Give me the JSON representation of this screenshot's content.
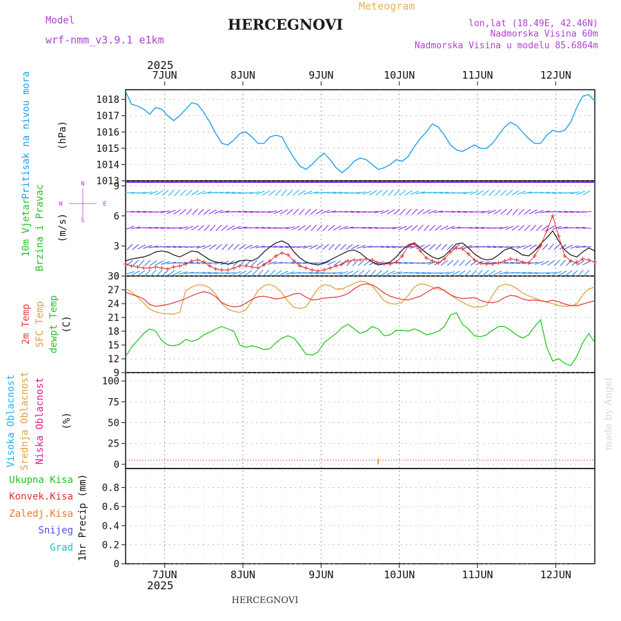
{
  "header": {
    "model_label": "Model",
    "model_name": "wrf-nmm_v3.9.1 e1km",
    "city": "HERCEGNOVI",
    "product": "Meteogram",
    "lonlat": "lon,lat (18.49E, 42.46N)",
    "elevation": "Nadmorska Visina 60m",
    "model_elevation": "Nadmorska Visina u modelu 85.6864m",
    "footer_city": "HERCEGNOVI",
    "watermark": "made by Angel"
  },
  "colors": {
    "pressure": "#1ea0e6",
    "wind_label": "#22c022",
    "wind_arrow_low": "#1e90ff",
    "wind_arrow_high": "#8a2be2",
    "wind_gust": "#e03030",
    "temp2m": "#e04040",
    "sfc": "#e0a040",
    "dewpoint": "#22c822",
    "cloud_high": "#1eb4e6",
    "cloud_mid": "#e0a040",
    "cloud_low": "#e01a8c",
    "rain_total": "#22c022",
    "rain_conv": "#e03030",
    "rain_frozen": "#f07820",
    "snow": "#5050e0",
    "grad": "#20c0c0",
    "meta_text": "#b040d0",
    "product_text": "#e8b060"
  },
  "axis": {
    "year": "2025",
    "days": [
      "7JUN",
      "8JUN",
      "9JUN",
      "10JUN",
      "11JUN",
      "12JUN"
    ]
  },
  "panels": {
    "pressure": {
      "label": "Pritisak na nivou mora",
      "unit": "(hPa)"
    },
    "wind": {
      "label1": "10m Vjetar",
      "label2": "Brzina i Pravac",
      "unit": "(m/s)",
      "compass_n": "N",
      "compass_s": "S",
      "compass_w": "W",
      "compass_e": "E"
    },
    "temp": {
      "label1": "2m Temp",
      "label2": "SFC Temp",
      "label3": "dewpt Temp",
      "unit": "(C)"
    },
    "cloud": {
      "label1": "Visoka Oblacnost",
      "label2": "Srednja Oblacnost",
      "label3": "Niska Oblacnost",
      "unit": "(%)"
    },
    "precip": {
      "label1": "Ukupna Kisa",
      "label2": "Konvek.Kisa",
      "label3": "Zaledj.Kisa",
      "label4": "Snijeg",
      "label5": "Grad",
      "unit": "1hr Precip (mm)"
    }
  },
  "chart_data": [
    {
      "type": "line",
      "name": "pressure",
      "x_start_day": 6.5,
      "x_end_day": 12.5,
      "ylim": [
        1013,
        1018.6
      ],
      "yticks": [
        1013,
        1014,
        1015,
        1016,
        1017,
        1018
      ],
      "series": [
        {
          "values": [
            1018.5,
            1017.7,
            1017.6,
            1017.4,
            1017.1,
            1017.5,
            1017.4,
            1017.0,
            1016.7,
            1017.0,
            1017.4,
            1017.8,
            1017.7,
            1017.2,
            1016.6,
            1015.9,
            1015.3,
            1015.2,
            1015.5,
            1015.9,
            1016.0,
            1015.7,
            1015.3,
            1015.3,
            1015.7,
            1015.8,
            1015.7,
            1015.0,
            1014.4,
            1013.9,
            1013.7,
            1014.0,
            1014.4,
            1014.7,
            1014.3,
            1013.8,
            1013.5,
            1013.8,
            1014.2,
            1014.4,
            1014.3,
            1014.0,
            1013.7,
            1013.8,
            1014.0,
            1014.3,
            1014.2,
            1014.5,
            1015.1,
            1015.6,
            1016.0,
            1016.5,
            1016.3,
            1015.8,
            1015.2,
            1014.9,
            1014.8,
            1015.0,
            1015.2,
            1015.0,
            1015.0,
            1015.3,
            1015.8,
            1016.3,
            1016.6,
            1016.4,
            1016.0,
            1015.6,
            1015.3,
            1015.3,
            1015.8,
            1016.1,
            1016.0,
            1016.1,
            1016.6,
            1017.5,
            1018.2,
            1018.3,
            1017.9
          ]
        }
      ]
    },
    {
      "type": "line",
      "name": "wind",
      "ylim": [
        0,
        9.5
      ],
      "yticks": [
        0,
        3,
        6,
        9
      ],
      "series": [
        {
          "name": "gust",
          "values": [
            1.2,
            1.0,
            0.9,
            0.8,
            0.8,
            0.9,
            0.8,
            0.7,
            0.9,
            1.0,
            1.2,
            1.5,
            1.6,
            1.4,
            1.0,
            0.7,
            0.6,
            0.6,
            0.8,
            1.0,
            1.0,
            0.9,
            0.8,
            1.1,
            1.5,
            2.0,
            2.3,
            2.1,
            1.5,
            1.0,
            0.8,
            0.6,
            0.5,
            0.6,
            0.8,
            1.0,
            1.2,
            1.5,
            1.6,
            1.6,
            1.7,
            1.6,
            1.3,
            1.2,
            1.2,
            1.4,
            2.0,
            3.0,
            3.2,
            2.5,
            1.8,
            1.5,
            1.3,
            1.7,
            2.4,
            2.8,
            2.7,
            2.2,
            1.6,
            1.3,
            1.2,
            1.2,
            1.3,
            1.5,
            1.7,
            1.6,
            1.4,
            1.3,
            2.0,
            3.0,
            4.5,
            6.0,
            4.0,
            2.0,
            1.5,
            1.3,
            1.7,
            1.6,
            1.4
          ]
        },
        {
          "name": "speed",
          "values": [
            1.5,
            1.7,
            1.8,
            1.9,
            2.1,
            2.4,
            2.5,
            2.4,
            2.1,
            1.9,
            2.2,
            2.5,
            2.4,
            2.0,
            1.6,
            1.4,
            1.3,
            1.2,
            1.3,
            1.5,
            1.6,
            1.5,
            1.8,
            2.4,
            2.9,
            3.3,
            3.5,
            3.2,
            2.4,
            1.8,
            1.4,
            1.2,
            1.1,
            1.3,
            1.6,
            1.9,
            2.2,
            2.5,
            2.6,
            2.3,
            1.8,
            1.4,
            1.1,
            1.2,
            1.4,
            1.9,
            2.6,
            3.1,
            3.3,
            2.8,
            2.3,
            1.9,
            1.7,
            2.0,
            2.6,
            3.2,
            3.3,
            2.8,
            2.2,
            1.8,
            1.6,
            1.7,
            2.1,
            2.6,
            2.8,
            2.5,
            2.1,
            2.0,
            2.5,
            3.2,
            3.8,
            4.5,
            3.5,
            2.6,
            2.1,
            1.9,
            2.4,
            2.8,
            2.5
          ]
        }
      ]
    },
    {
      "type": "line",
      "name": "temperature",
      "ylim": [
        9,
        30
      ],
      "yticks": [
        9,
        12,
        15,
        18,
        21,
        24,
        27,
        30
      ],
      "series": [
        {
          "name": "2m",
          "values": [
            26.5,
            26.0,
            25.6,
            25.0,
            23.8,
            23.4,
            23.6,
            23.8,
            24.2,
            24.6,
            25.1,
            25.7,
            26.2,
            26.6,
            26.3,
            25.5,
            24.2,
            23.6,
            23.3,
            23.4,
            24.1,
            24.9,
            25.5,
            25.6,
            25.3,
            25.0,
            25.2,
            25.6,
            26.1,
            26.2,
            25.4,
            24.8,
            24.9,
            25.2,
            25.3,
            25.4,
            25.7,
            26.2,
            27.2,
            28.0,
            28.3,
            28.1,
            27.3,
            26.3,
            25.6,
            25.2,
            24.9,
            24.8,
            25.2,
            25.6,
            26.4,
            27.2,
            27.6,
            26.8,
            25.9,
            25.4,
            25.1,
            25.2,
            25.3,
            24.7,
            24.3,
            24.2,
            24.5,
            25.3,
            25.8,
            25.6,
            25.0,
            24.7,
            24.8,
            24.6,
            24.4,
            24.7,
            24.4,
            23.9,
            23.6,
            23.5,
            23.9,
            24.3,
            24.6
          ]
        },
        {
          "name": "sfc",
          "values": [
            27.3,
            26.5,
            25.4,
            24.1,
            22.8,
            22.2,
            21.9,
            21.8,
            21.7,
            22.1,
            26.8,
            27.6,
            28.1,
            28.0,
            27.4,
            26.0,
            24.0,
            22.8,
            22.3,
            22.1,
            22.6,
            24.6,
            26.8,
            27.9,
            28.2,
            27.6,
            26.3,
            24.5,
            23.2,
            22.9,
            23.3,
            25.4,
            27.3,
            28.1,
            27.9,
            27.2,
            27.2,
            27.8,
            28.4,
            28.9,
            28.7,
            27.9,
            26.2,
            24.6,
            24.0,
            23.9,
            24.3,
            25.8,
            27.6,
            28.3,
            28.1,
            27.6,
            27.2,
            26.9,
            25.9,
            25.0,
            24.3,
            23.6,
            23.2,
            23.3,
            23.6,
            25.8,
            27.7,
            28.2,
            28.0,
            27.3,
            26.3,
            25.7,
            25.2,
            24.7,
            24.3,
            24.0,
            23.6,
            23.4,
            23.5,
            23.9,
            25.9,
            27.2,
            27.6
          ]
        },
        {
          "name": "dewpoint",
          "values": [
            12.5,
            14.5,
            16.0,
            17.5,
            18.5,
            18.0,
            16.0,
            15.0,
            14.8,
            15.2,
            16.2,
            15.8,
            16.2,
            17.2,
            17.8,
            18.5,
            19.0,
            18.5,
            18.0,
            15.0,
            14.5,
            14.8,
            14.5,
            14.0,
            14.2,
            15.5,
            16.5,
            17.0,
            16.5,
            14.8,
            13.0,
            12.8,
            13.5,
            15.5,
            16.5,
            17.5,
            18.8,
            19.5,
            18.5,
            17.5,
            18.0,
            19.0,
            18.5,
            17.0,
            17.2,
            18.2,
            18.2,
            18.0,
            18.5,
            18.0,
            17.2,
            17.5,
            18.0,
            19.0,
            21.5,
            22.0,
            19.5,
            18.5,
            17.0,
            16.8,
            17.2,
            18.2,
            19.0,
            19.0,
            18.2,
            17.2,
            16.5,
            17.2,
            19.0,
            20.5,
            14.5,
            11.5,
            12.0,
            11.0,
            10.5,
            12.5,
            15.5,
            17.5,
            15.5
          ]
        }
      ]
    },
    {
      "type": "bar",
      "name": "cloud_cover",
      "ylim": [
        -5,
        110
      ],
      "yticks": [
        0,
        25,
        50,
        75,
        100
      ],
      "series": [
        {
          "name": "high",
          "values": [
            0,
            0,
            0,
            0,
            0,
            0,
            0,
            0,
            0,
            0,
            0,
            0,
            0,
            0,
            0,
            0,
            0,
            0,
            0,
            0,
            0,
            0,
            0,
            0,
            0,
            0,
            0,
            0,
            0,
            0,
            0,
            0,
            0,
            0,
            0,
            0,
            0,
            0,
            0,
            0,
            0,
            0,
            0,
            0,
            0,
            0,
            0,
            0,
            0,
            0,
            0,
            0,
            0,
            0,
            0,
            0,
            0,
            0,
            0,
            0,
            0,
            0,
            0,
            0,
            0,
            0,
            0,
            0,
            0,
            0,
            0,
            0,
            0,
            0,
            0,
            0,
            0,
            0,
            0
          ]
        },
        {
          "name": "mid",
          "values": [
            0,
            0,
            0,
            0,
            0,
            0,
            0,
            0,
            0,
            0,
            0,
            0,
            0,
            0,
            0,
            0,
            0,
            0,
            0,
            0,
            0,
            0,
            0,
            0,
            0,
            0,
            0,
            0,
            0,
            0,
            0,
            0,
            0,
            0,
            0,
            0,
            0,
            0,
            0,
            0,
            0,
            0,
            7,
            0,
            0,
            0,
            0,
            0,
            0,
            0,
            0,
            0,
            0,
            0,
            0,
            0,
            0,
            0,
            0,
            0,
            0,
            0,
            0,
            0,
            0,
            0,
            0,
            0,
            0,
            0,
            0,
            0,
            0,
            0,
            0,
            0,
            0,
            0,
            0
          ]
        },
        {
          "name": "low",
          "values": [
            0,
            0,
            0,
            0,
            0,
            0,
            0,
            0,
            0,
            0,
            0,
            0,
            0,
            0,
            0,
            0,
            0,
            0,
            0,
            0,
            0,
            0,
            0,
            0,
            0,
            0,
            0,
            0,
            0,
            0,
            0,
            0,
            0,
            0,
            0,
            0,
            0,
            0,
            0,
            0,
            0,
            0,
            0,
            0,
            0,
            0,
            0,
            0,
            0,
            0,
            0,
            0,
            0,
            0,
            0,
            0,
            0,
            0,
            0,
            0,
            0,
            0,
            0,
            0,
            0,
            0,
            0,
            0,
            0,
            0,
            0,
            0,
            0,
            0,
            0,
            0,
            0,
            0,
            0
          ]
        }
      ]
    },
    {
      "type": "bar",
      "name": "precipitation",
      "ylim": [
        0,
        1.0
      ],
      "yticks": [
        0,
        0.2,
        0.4,
        0.6,
        0.8
      ],
      "series": [
        {
          "name": "total",
          "values": [
            0,
            0,
            0,
            0,
            0,
            0,
            0,
            0,
            0,
            0,
            0,
            0,
            0,
            0,
            0,
            0,
            0,
            0,
            0,
            0,
            0,
            0,
            0,
            0,
            0,
            0,
            0,
            0,
            0,
            0,
            0,
            0,
            0,
            0,
            0,
            0,
            0,
            0,
            0,
            0,
            0,
            0,
            0,
            0,
            0,
            0,
            0,
            0,
            0,
            0,
            0,
            0,
            0,
            0,
            0,
            0,
            0,
            0,
            0,
            0,
            0,
            0,
            0,
            0,
            0,
            0,
            0,
            0,
            0,
            0,
            0,
            0,
            0,
            0,
            0,
            0,
            0,
            0,
            0
          ]
        }
      ]
    }
  ]
}
